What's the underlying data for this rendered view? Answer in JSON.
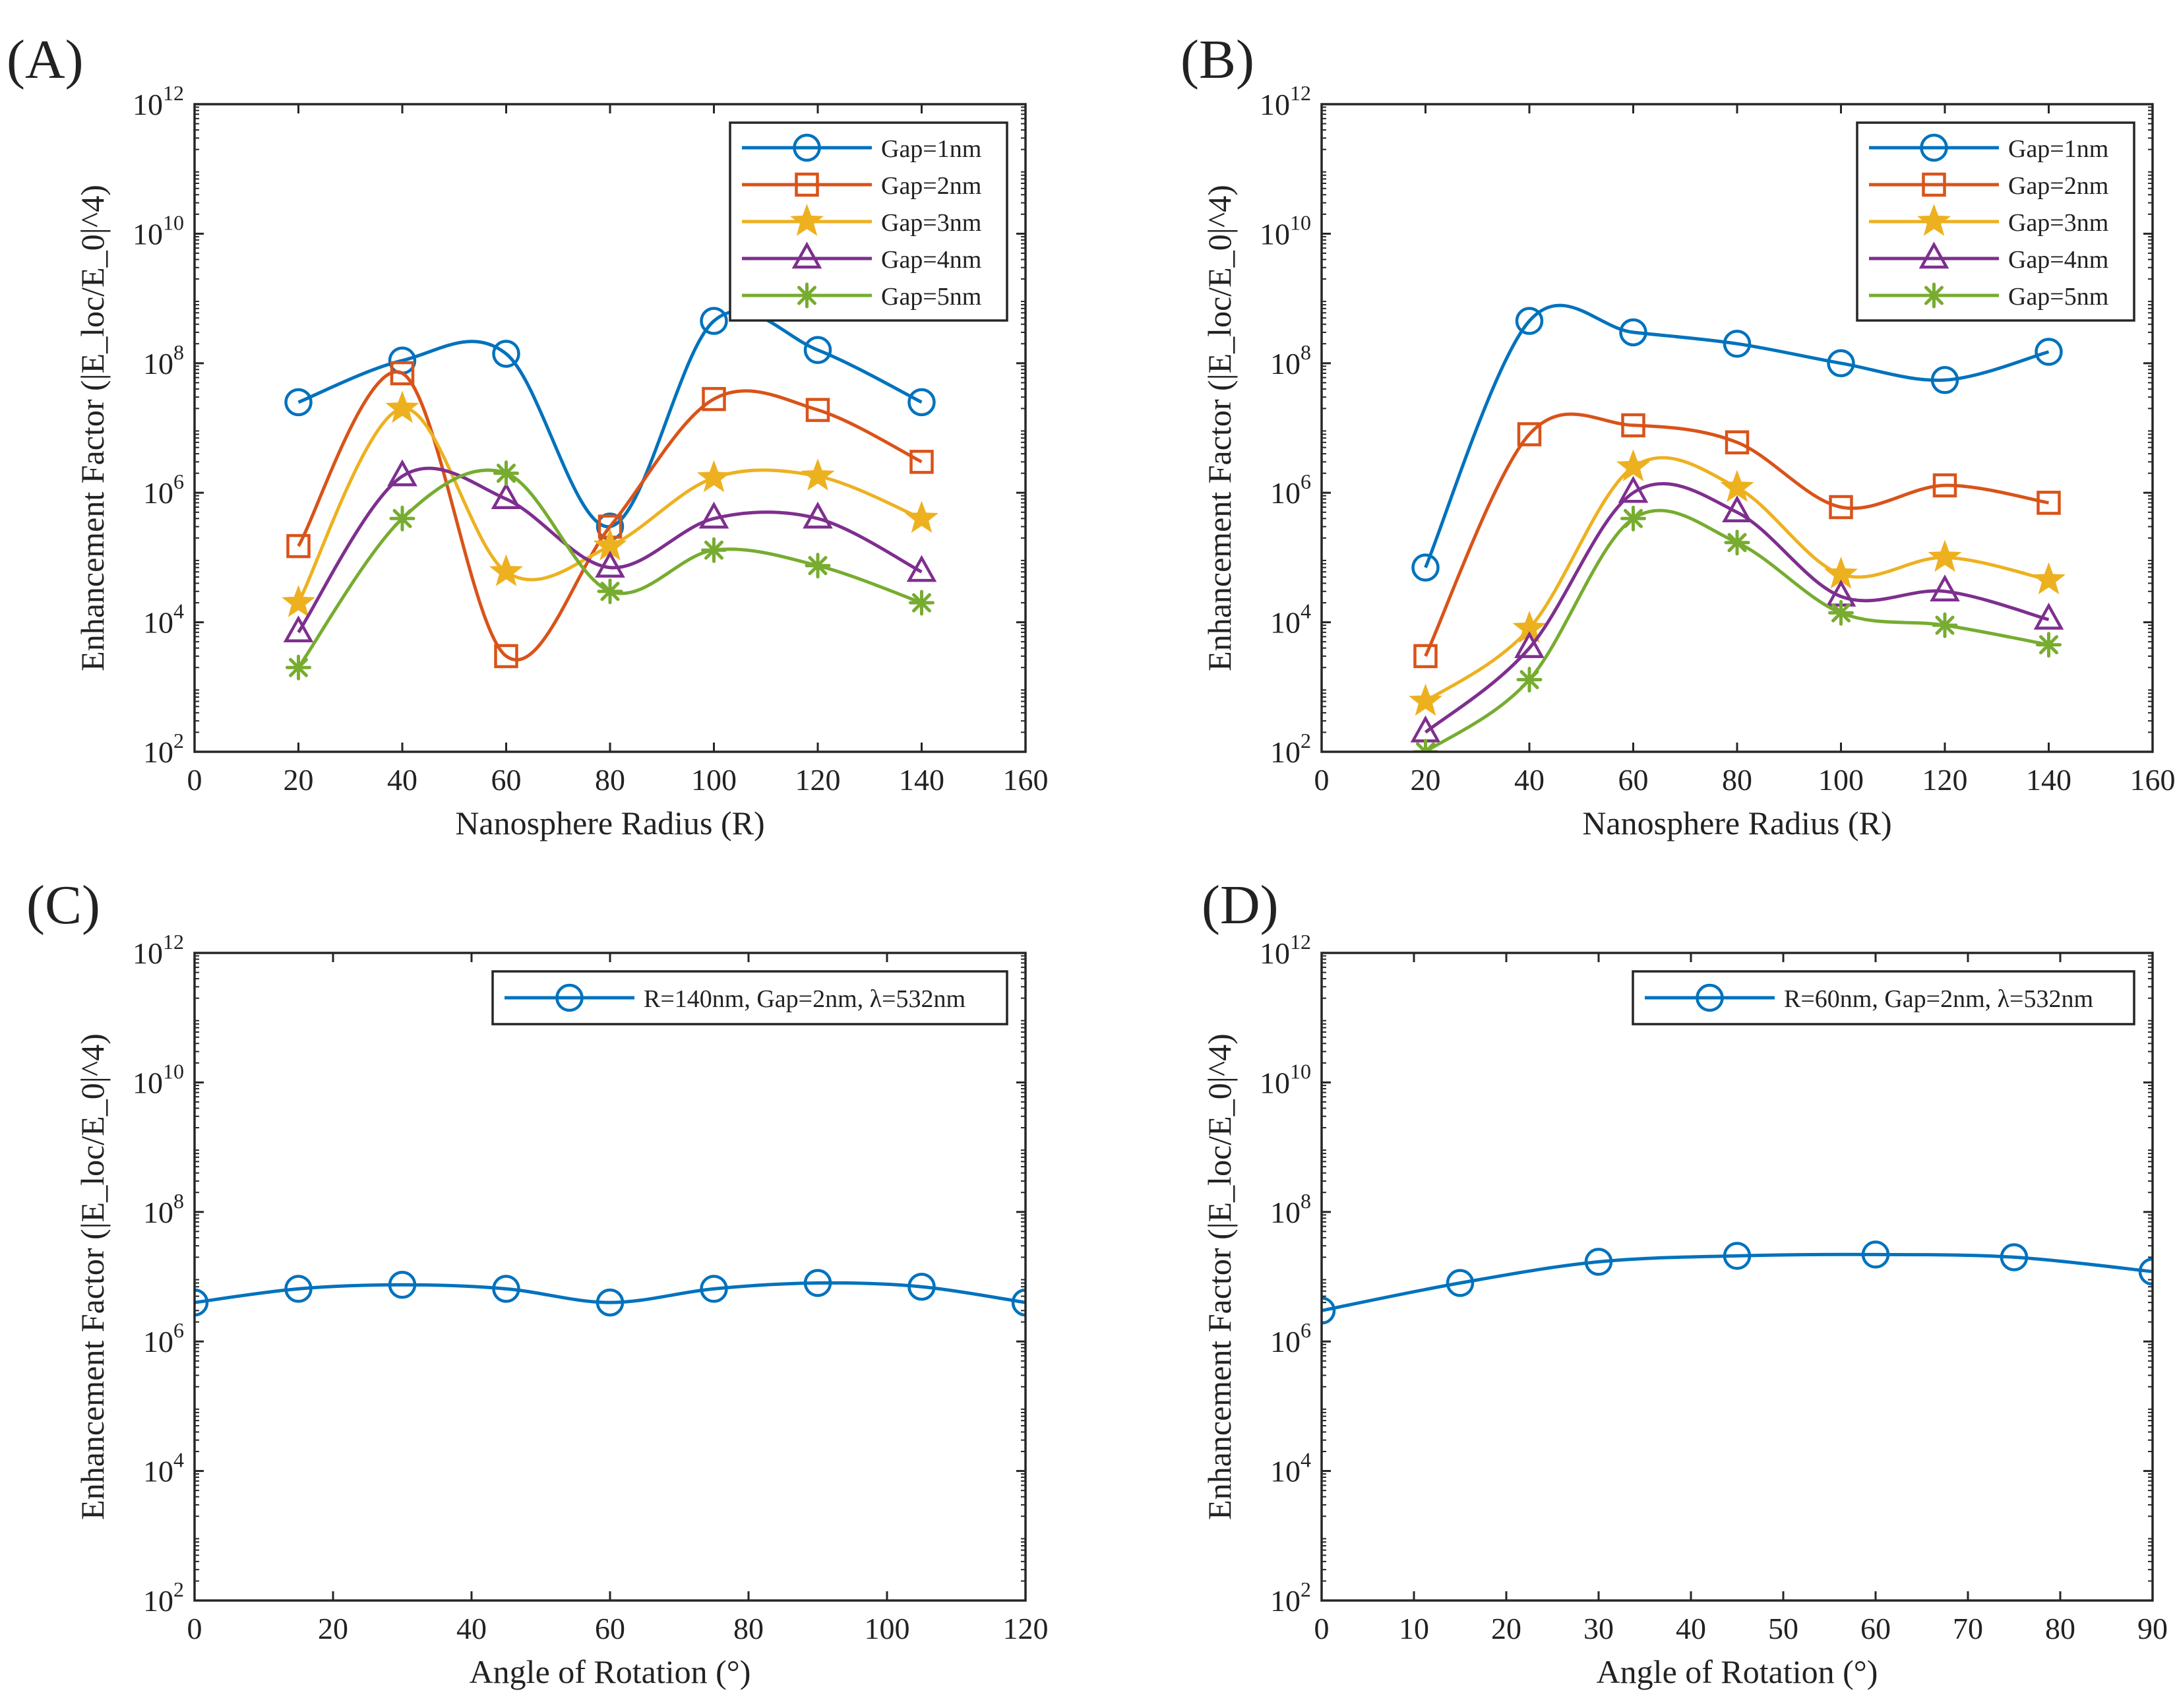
{
  "colors": {
    "series": [
      "#0072BD",
      "#D95319",
      "#EDB120",
      "#7E2F8E",
      "#77AC30"
    ],
    "axis": "#262626",
    "text": "#222222"
  },
  "chart_data": [
    {
      "panel_label": "(A)",
      "type": "line",
      "yscale": "log",
      "xlim": [
        0,
        160
      ],
      "ylim": [
        100,
        1000000000000
      ],
      "xticks": [
        "0",
        "20",
        "40",
        "60",
        "80",
        "100",
        "120",
        "140",
        "160"
      ],
      "yticks": [
        {
          "base": "10",
          "exp": "2"
        },
        {
          "base": "10",
          "exp": "4"
        },
        {
          "base": "10",
          "exp": "6"
        },
        {
          "base": "10",
          "exp": "8"
        },
        {
          "base": "10",
          "exp": "10"
        },
        {
          "base": "10",
          "exp": "12"
        }
      ],
      "xlabel": "Nanosphere Radius (R)",
      "ylabel": "Enhancement  Factor  (|E_loc/E_0|^4)",
      "legend_position": "top-right",
      "x": [
        20,
        40,
        60,
        80,
        100,
        120,
        140
      ],
      "series": [
        {
          "name": "Gap=1nm",
          "marker": "circle",
          "values": [
            25000000,
            110000000,
            140000000,
            300000,
            450000000,
            160000000,
            25000000
          ]
        },
        {
          "name": "Gap=2nm",
          "marker": "square",
          "values": [
            150000,
            70000000,
            3000,
            300000,
            28000000,
            19000000,
            3000000
          ]
        },
        {
          "name": "Gap=3nm",
          "marker": "star",
          "values": [
            20000,
            20000000,
            60000,
            150000,
            1700000,
            1800000,
            400000
          ]
        },
        {
          "name": "Gap=4nm",
          "marker": "triangle",
          "values": [
            7000,
            1800000,
            800000,
            70000,
            400000,
            400000,
            60000
          ]
        },
        {
          "name": "Gap=5nm",
          "marker": "asterisk",
          "values": [
            2000,
            400000,
            2000000,
            30000,
            130000,
            75000,
            20000
          ]
        }
      ]
    },
    {
      "panel_label": "(B)",
      "type": "line",
      "yscale": "log",
      "xlim": [
        0,
        160
      ],
      "ylim": [
        100,
        1000000000000
      ],
      "xticks": [
        "0",
        "20",
        "40",
        "60",
        "80",
        "100",
        "120",
        "140",
        "160"
      ],
      "yticks": [
        {
          "base": "10",
          "exp": "2"
        },
        {
          "base": "10",
          "exp": "4"
        },
        {
          "base": "10",
          "exp": "6"
        },
        {
          "base": "10",
          "exp": "8"
        },
        {
          "base": "10",
          "exp": "10"
        },
        {
          "base": "10",
          "exp": "12"
        }
      ],
      "xlabel": "Nanosphere Radius (R)",
      "ylabel": "Enhancement  Factor  (|E_loc/E_0|^4)",
      "legend_position": "top-right",
      "x": [
        20,
        40,
        60,
        80,
        100,
        120,
        140
      ],
      "series": [
        {
          "name": "Gap=1nm",
          "marker": "circle",
          "values": [
            70000,
            450000000,
            300000000,
            200000000,
            100000000,
            55000000,
            150000000
          ]
        },
        {
          "name": "Gap=2nm",
          "marker": "square",
          "values": [
            3000,
            8000000,
            11000000,
            6000000,
            600000,
            1300000,
            700000
          ]
        },
        {
          "name": "Gap=3nm",
          "marker": "star",
          "values": [
            600,
            8000,
            2500000,
            1200000,
            55000,
            100000,
            45000
          ]
        },
        {
          "name": "Gap=4nm",
          "marker": "triangle",
          "values": [
            200,
            4000,
            1000000,
            500000,
            25000,
            30000,
            11000
          ]
        },
        {
          "name": "Gap=5nm",
          "marker": "asterisk",
          "values": [
            100,
            1300,
            400000,
            170000,
            14000,
            9000,
            4500
          ]
        }
      ]
    },
    {
      "panel_label": "(C)",
      "type": "line",
      "yscale": "log",
      "xlim": [
        0,
        120
      ],
      "ylim": [
        100,
        1000000000000
      ],
      "xticks": [
        "0",
        "20",
        "40",
        "60",
        "80",
        "100",
        "120"
      ],
      "yticks": [
        {
          "base": "10",
          "exp": "2"
        },
        {
          "base": "10",
          "exp": "4"
        },
        {
          "base": "10",
          "exp": "6"
        },
        {
          "base": "10",
          "exp": "8"
        },
        {
          "base": "10",
          "exp": "10"
        },
        {
          "base": "10",
          "exp": "12"
        }
      ],
      "xlabel": "Angle of Rotation (°)",
      "ylabel": "Enhancement  Factor  (|E_loc/E_0|^4)",
      "legend_position": "top-right",
      "x": [
        0,
        15,
        30,
        45,
        60,
        75,
        90,
        105,
        120
      ],
      "series": [
        {
          "name": "R=140nm, Gap=2nm, λ=532nm",
          "marker": "circle",
          "values": [
            4000000,
            6500000,
            7500000,
            6500000,
            4000000,
            6500000,
            8000000,
            7000000,
            4000000
          ]
        }
      ]
    },
    {
      "panel_label": "(D)",
      "type": "line",
      "yscale": "log",
      "xlim": [
        0,
        90
      ],
      "ylim": [
        100,
        1000000000000
      ],
      "xticks": [
        "0",
        "10",
        "20",
        "30",
        "40",
        "50",
        "60",
        "70",
        "80",
        "90"
      ],
      "yticks": [
        {
          "base": "10",
          "exp": "2"
        },
        {
          "base": "10",
          "exp": "4"
        },
        {
          "base": "10",
          "exp": "6"
        },
        {
          "base": "10",
          "exp": "8"
        },
        {
          "base": "10",
          "exp": "10"
        },
        {
          "base": "10",
          "exp": "12"
        }
      ],
      "xlabel": "Angle of Rotation (°)",
      "ylabel": "Enhancement  Factor  (|E_loc/E_0|^4)",
      "legend_position": "top-right",
      "x": [
        0,
        15,
        30,
        45,
        60,
        75,
        90
      ],
      "series": [
        {
          "name": "R=60nm, Gap=2nm, λ=532nm",
          "marker": "circle",
          "values": [
            3000000,
            8000000,
            17000000,
            21000000,
            22000000,
            20000000,
            12000000
          ]
        }
      ]
    }
  ]
}
